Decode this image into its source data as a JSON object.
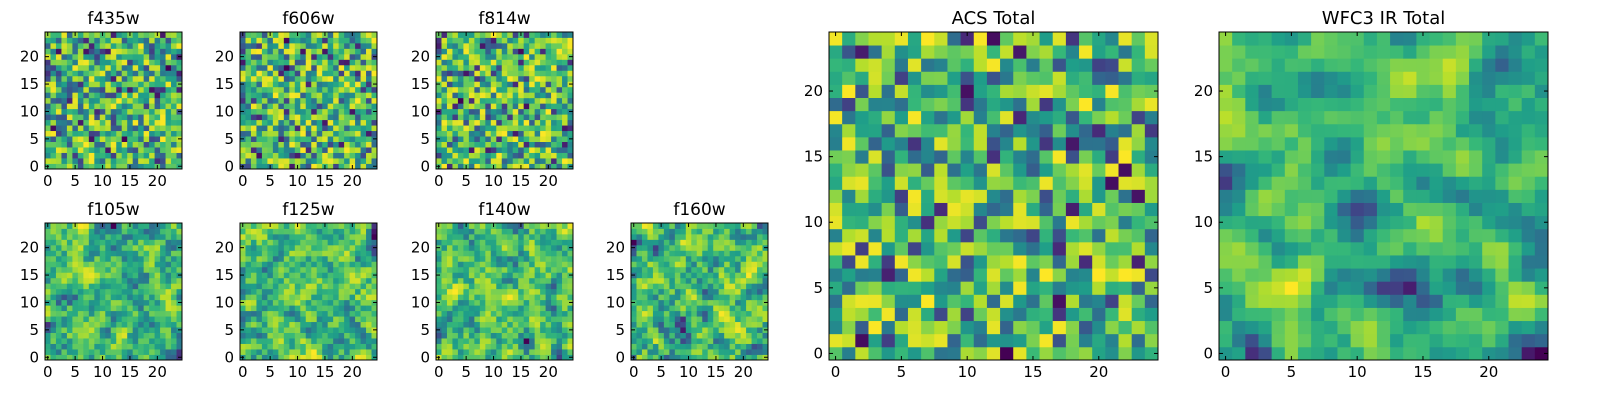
{
  "chart_data": [
    {
      "type": "heatmap",
      "title": "f435w",
      "rows": 25,
      "cols": 25,
      "seed": 11,
      "smooth": 0,
      "colormap": "viridis",
      "xticks": [
        0,
        5,
        10,
        15,
        20
      ],
      "yticks": [
        0,
        5,
        10,
        15,
        20
      ]
    },
    {
      "type": "heatmap",
      "title": "f606w",
      "rows": 25,
      "cols": 25,
      "seed": 23,
      "smooth": 0,
      "colormap": "viridis",
      "xticks": [
        0,
        5,
        10,
        15,
        20
      ],
      "yticks": [
        0,
        5,
        10,
        15,
        20
      ]
    },
    {
      "type": "heatmap",
      "title": "f814w",
      "rows": 25,
      "cols": 25,
      "seed": 37,
      "smooth": 0,
      "colormap": "viridis",
      "xticks": [
        0,
        5,
        10,
        15,
        20
      ],
      "yticks": [
        0,
        5,
        10,
        15,
        20
      ]
    },
    {
      "type": "heatmap",
      "title": "f105w",
      "rows": 25,
      "cols": 25,
      "seed": 41,
      "smooth": 1,
      "colormap": "viridis",
      "xticks": [
        0,
        5,
        10,
        15,
        20
      ],
      "yticks": [
        0,
        5,
        10,
        15,
        20
      ]
    },
    {
      "type": "heatmap",
      "title": "f125w",
      "rows": 25,
      "cols": 25,
      "seed": 53,
      "smooth": 1,
      "colormap": "viridis",
      "xticks": [
        0,
        5,
        10,
        15,
        20
      ],
      "yticks": [
        0,
        5,
        10,
        15,
        20
      ]
    },
    {
      "type": "heatmap",
      "title": "f140w",
      "rows": 25,
      "cols": 25,
      "seed": 67,
      "smooth": 1,
      "colormap": "viridis",
      "xticks": [
        0,
        5,
        10,
        15,
        20
      ],
      "yticks": [
        0,
        5,
        10,
        15,
        20
      ]
    },
    {
      "type": "heatmap",
      "title": "f160w",
      "rows": 25,
      "cols": 25,
      "seed": 79,
      "smooth": 1,
      "colormap": "viridis",
      "xticks": [
        0,
        5,
        10,
        15,
        20
      ],
      "yticks": [
        0,
        5,
        10,
        15,
        20
      ]
    },
    {
      "type": "heatmap",
      "title": "ACS Total",
      "rows": 25,
      "cols": 25,
      "seed": 97,
      "smooth": 0,
      "colormap": "viridis",
      "xticks": [
        0,
        5,
        10,
        15,
        20
      ],
      "yticks": [
        0,
        5,
        10,
        15,
        20
      ]
    },
    {
      "type": "heatmap",
      "title": "WFC3 IR Total",
      "rows": 25,
      "cols": 25,
      "seed": 131,
      "smooth": 2,
      "colormap": "viridis",
      "xticks": [
        0,
        5,
        10,
        15,
        20
      ],
      "yticks": [
        0,
        5,
        10,
        15,
        20
      ]
    }
  ]
}
